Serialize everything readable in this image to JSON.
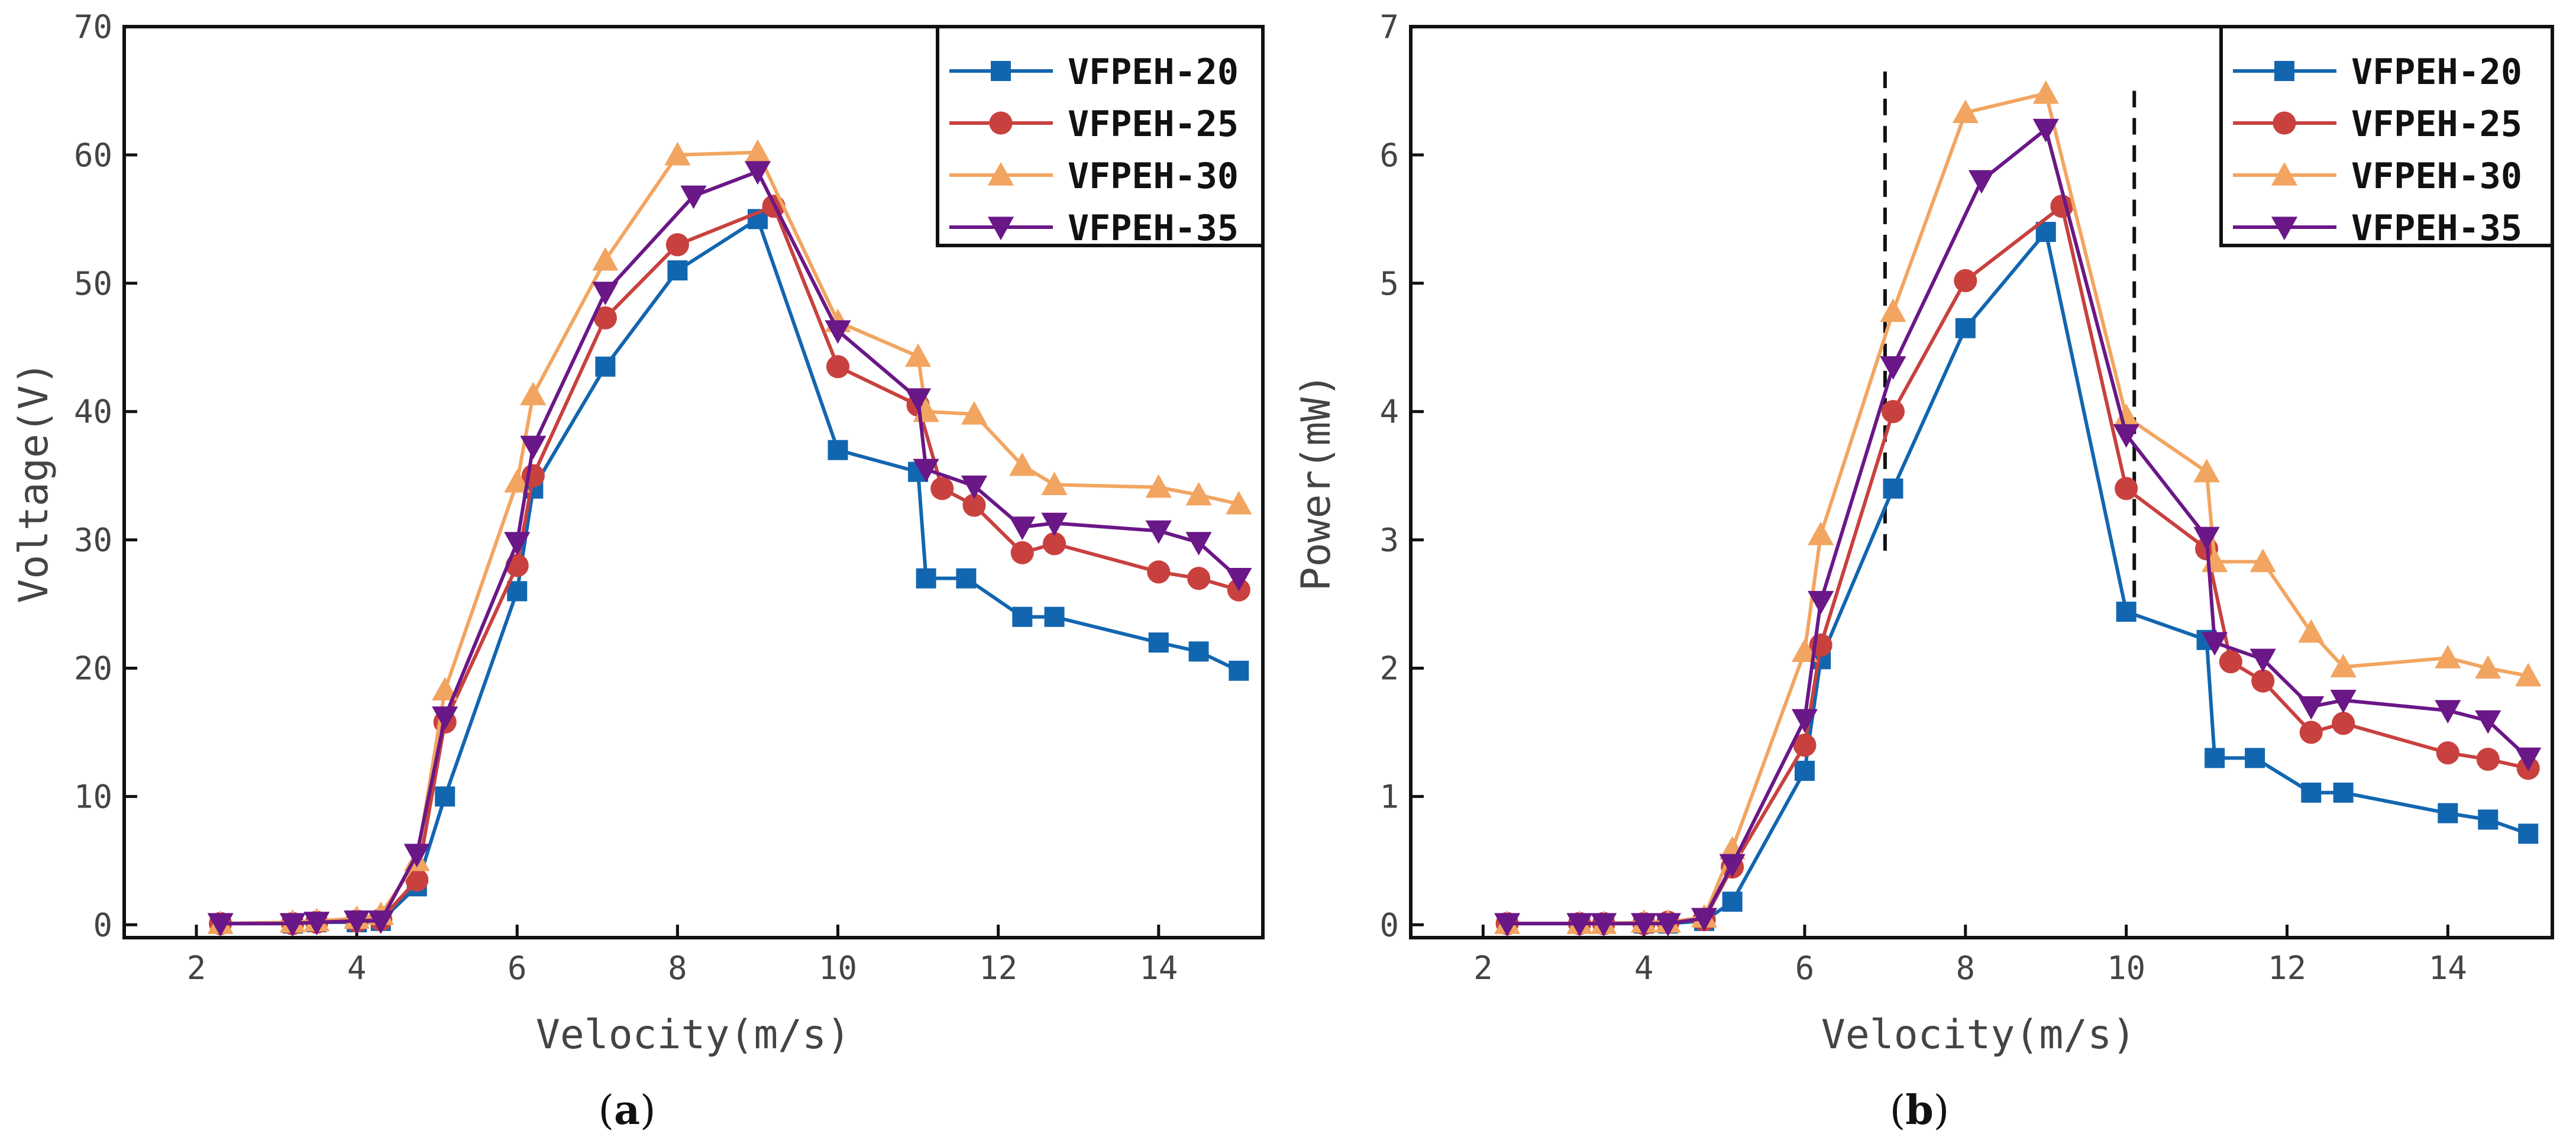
{
  "figure": {
    "labels": {
      "a": {
        "open": "(",
        "letter": "a",
        "close": ")"
      },
      "b": {
        "open": "(",
        "letter": "b",
        "close": ")"
      }
    }
  },
  "series_style": [
    {
      "name": "VFPEH-20",
      "color": "#1266b0",
      "marker": "square"
    },
    {
      "name": "VFPEH-25",
      "color": "#c8413f",
      "marker": "circle"
    },
    {
      "name": "VFPEH-30",
      "color": "#f2a560",
      "marker": "triangle-up"
    },
    {
      "name": "VFPEH-35",
      "color": "#6a1787",
      "marker": "triangle-down"
    }
  ],
  "chart_data": [
    {
      "type": "line",
      "panel": "a",
      "title": "",
      "xlabel": "Velocity(m/s)",
      "ylabel": "Voltage(V)",
      "xlim": [
        1.1,
        15.3
      ],
      "ylim": [
        -1,
        70
      ],
      "xticks": [
        2,
        4,
        6,
        8,
        10,
        12,
        14
      ],
      "yticks": [
        0,
        10,
        20,
        30,
        40,
        50,
        60,
        70
      ],
      "legend": "top-right",
      "grid": false,
      "reference_lines": [],
      "series": [
        {
          "name": "VFPEH-20",
          "x": [
            2.3,
            3.2,
            3.5,
            4.0,
            4.3,
            4.75,
            5.1,
            6.0,
            6.2,
            7.1,
            8.0,
            9.0,
            10.0,
            11.0,
            11.1,
            11.6,
            12.3,
            12.7,
            14.0,
            14.5,
            15.0
          ],
          "values": [
            0.1,
            0.1,
            0.2,
            0.2,
            0.3,
            3.0,
            10.0,
            26.0,
            34.0,
            43.5,
            51.0,
            55.0,
            37.0,
            35.3,
            27.0,
            27.0,
            24.0,
            24.0,
            22.0,
            21.3,
            19.8
          ]
        },
        {
          "name": "VFPEH-25",
          "x": [
            2.3,
            3.2,
            3.5,
            4.0,
            4.3,
            4.75,
            5.1,
            6.0,
            6.2,
            7.1,
            8.0,
            9.2,
            10.0,
            11.0,
            11.3,
            11.7,
            12.3,
            12.7,
            14.0,
            14.5,
            15.0
          ],
          "values": [
            0.1,
            0.1,
            0.2,
            0.3,
            0.4,
            3.5,
            15.8,
            28.0,
            35.0,
            47.3,
            53.0,
            56.0,
            43.5,
            40.5,
            34.0,
            32.7,
            29.0,
            29.7,
            27.5,
            27.0,
            26.1
          ]
        },
        {
          "name": "VFPEH-30",
          "x": [
            2.3,
            3.2,
            3.5,
            4.0,
            4.3,
            4.75,
            5.1,
            6.0,
            6.2,
            7.1,
            8.0,
            9.0,
            10.0,
            11.0,
            11.1,
            11.7,
            12.3,
            12.7,
            14.0,
            14.5,
            15.0
          ],
          "values": [
            0.1,
            0.2,
            0.3,
            0.5,
            0.8,
            5.0,
            18.3,
            34.5,
            41.3,
            51.8,
            60.0,
            60.2,
            47.0,
            44.3,
            40.0,
            39.8,
            35.8,
            34.3,
            34.1,
            33.5,
            32.8
          ]
        },
        {
          "name": "VFPEH-35",
          "x": [
            2.3,
            3.2,
            3.5,
            4.0,
            4.3,
            4.75,
            5.1,
            6.0,
            6.2,
            7.1,
            8.2,
            9.0,
            10.0,
            11.0,
            11.1,
            11.7,
            12.3,
            12.7,
            14.0,
            14.5,
            15.0
          ],
          "values": [
            0.1,
            0.1,
            0.2,
            0.3,
            0.3,
            5.5,
            16.2,
            29.8,
            37.3,
            49.3,
            56.8,
            58.7,
            46.3,
            41.0,
            35.5,
            34.2,
            31.0,
            31.3,
            30.7,
            29.8,
            27.0
          ]
        }
      ]
    },
    {
      "type": "line",
      "panel": "b",
      "title": "",
      "xlabel": "Velocity(m/s)",
      "ylabel": "Power(mW)",
      "xlim": [
        1.1,
        15.3
      ],
      "ylim": [
        -0.1,
        7
      ],
      "xticks": [
        2,
        4,
        6,
        8,
        10,
        12,
        14
      ],
      "yticks": [
        0,
        1,
        2,
        3,
        4,
        5,
        6,
        7
      ],
      "legend": "top-right",
      "grid": false,
      "reference_lines": [
        {
          "x": 7.0,
          "y_from": 2.9,
          "y_to": 6.65,
          "style": "dashed"
        },
        {
          "x": 10.1,
          "y_from": 2.5,
          "y_to": 6.5,
          "style": "dashed"
        }
      ],
      "series": [
        {
          "name": "VFPEH-20",
          "x": [
            2.3,
            3.2,
            3.5,
            4.0,
            4.3,
            4.75,
            5.1,
            6.0,
            6.2,
            7.1,
            8.0,
            9.0,
            10.0,
            11.0,
            11.1,
            11.6,
            12.3,
            12.7,
            14.0,
            14.5,
            15.0
          ],
          "values": [
            0.01,
            0.01,
            0.01,
            0.01,
            0.01,
            0.03,
            0.18,
            1.2,
            2.07,
            3.4,
            4.65,
            5.4,
            2.44,
            2.22,
            1.3,
            1.3,
            1.03,
            1.03,
            0.87,
            0.82,
            0.71
          ]
        },
        {
          "name": "VFPEH-25",
          "x": [
            2.3,
            3.2,
            3.5,
            4.0,
            4.3,
            4.75,
            5.1,
            6.0,
            6.2,
            7.1,
            8.0,
            9.2,
            10.0,
            11.0,
            11.3,
            11.7,
            12.3,
            12.7,
            14.0,
            14.5,
            15.0
          ],
          "values": [
            0.01,
            0.01,
            0.01,
            0.01,
            0.02,
            0.04,
            0.45,
            1.4,
            2.18,
            4.0,
            5.02,
            5.6,
            3.4,
            2.93,
            2.05,
            1.9,
            1.5,
            1.57,
            1.34,
            1.29,
            1.22
          ]
        },
        {
          "name": "VFPEH-30",
          "x": [
            2.3,
            3.2,
            3.5,
            4.0,
            4.3,
            4.75,
            5.1,
            6.0,
            6.2,
            7.1,
            8.0,
            9.0,
            10.0,
            11.0,
            11.1,
            11.7,
            12.3,
            12.7,
            14.0,
            14.5,
            15.0
          ],
          "values": [
            0.01,
            0.01,
            0.01,
            0.02,
            0.02,
            0.06,
            0.59,
            2.13,
            3.04,
            4.78,
            6.33,
            6.48,
            3.96,
            3.53,
            2.83,
            2.83,
            2.28,
            2.01,
            2.08,
            2.0,
            1.94
          ]
        },
        {
          "name": "VFPEH-35",
          "x": [
            2.3,
            3.2,
            3.5,
            4.0,
            4.3,
            4.75,
            5.1,
            6.0,
            6.2,
            7.1,
            8.2,
            9.0,
            10.0,
            11.0,
            11.1,
            11.7,
            12.3,
            12.7,
            14.0,
            14.5,
            15.0
          ],
          "values": [
            0.01,
            0.01,
            0.01,
            0.01,
            0.01,
            0.05,
            0.47,
            1.6,
            2.52,
            4.35,
            5.8,
            6.2,
            3.82,
            3.02,
            2.2,
            2.07,
            1.7,
            1.75,
            1.67,
            1.59,
            1.3
          ]
        }
      ]
    }
  ]
}
